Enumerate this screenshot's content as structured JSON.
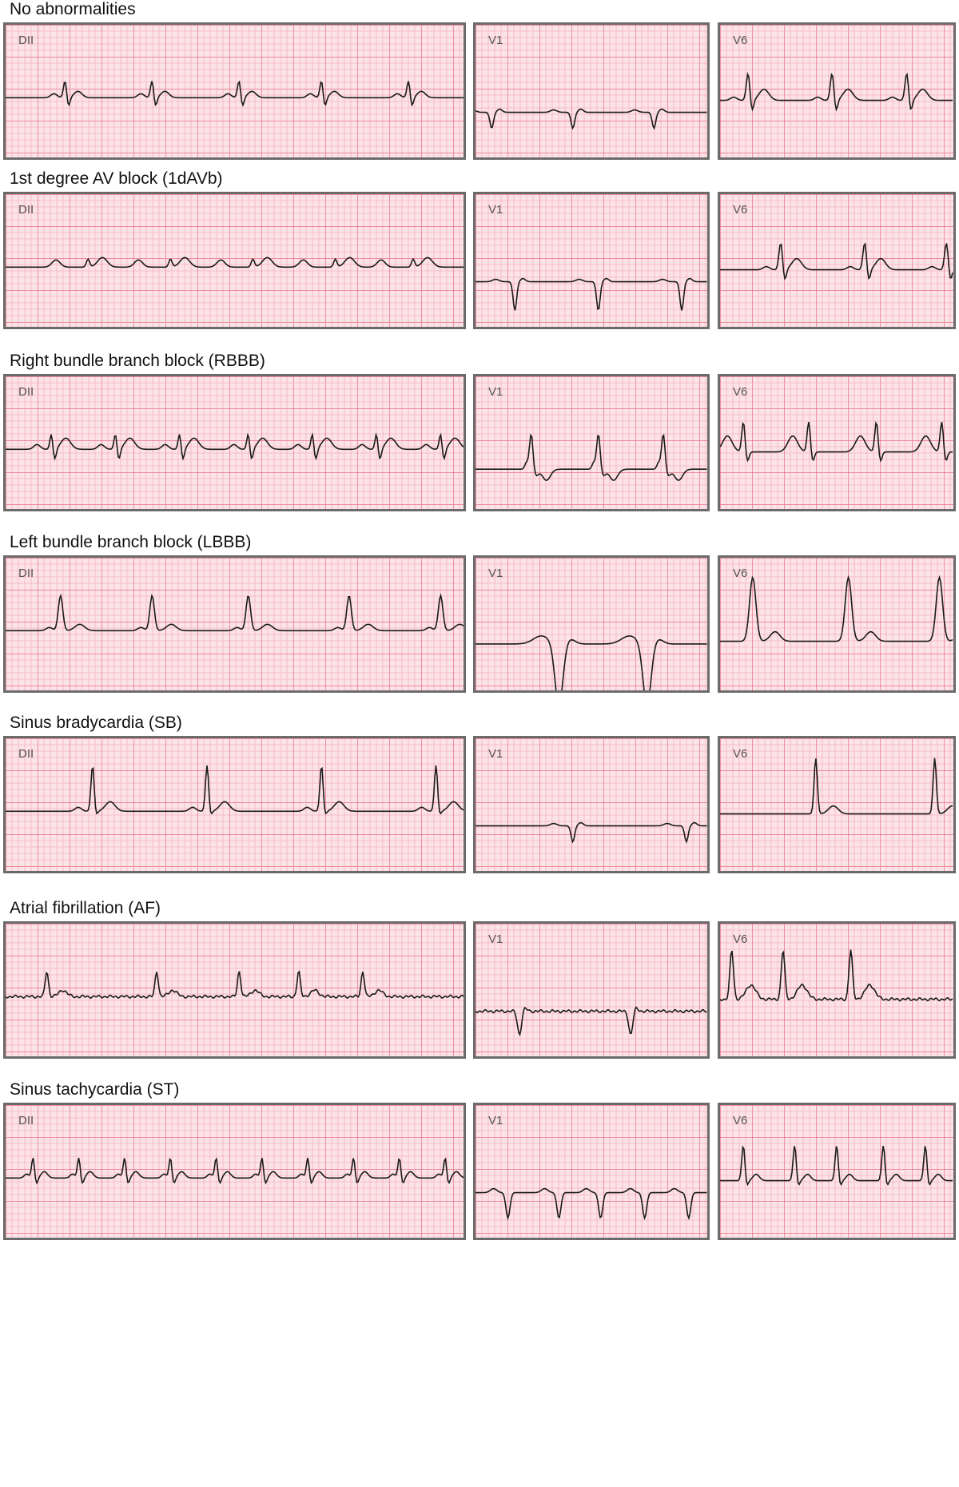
{
  "sections": [
    {
      "title": "No abnormalities",
      "leads": [
        "DII",
        "V1",
        "V6"
      ],
      "pattern": "normal"
    },
    {
      "title": "1st degree AV block (1dAVb)",
      "leads": [
        "DII",
        "V1",
        "V6"
      ],
      "pattern": "avb"
    },
    {
      "title": "Right bundle branch block (RBBB)",
      "leads": [
        "DII",
        "V1",
        "V6"
      ],
      "pattern": "rbbb"
    },
    {
      "title": "Left bundle branch block (LBBB)",
      "leads": [
        "DII",
        "V1",
        "V6"
      ],
      "pattern": "lbbb"
    },
    {
      "title": "Sinus bradycardia (SB)",
      "leads": [
        "DII",
        "V1",
        "V6"
      ],
      "pattern": "sb"
    },
    {
      "title": "Atrial fibrillation (AF)",
      "leads": [
        "",
        "V1",
        "V6"
      ],
      "pattern": "af"
    },
    {
      "title": "Sinus tachycardia (ST)",
      "leads": [
        "DII",
        "V1",
        "V6"
      ],
      "pattern": "st"
    }
  ],
  "colors": {
    "paper": "#fbe3e7",
    "minor_grid": "#f6b3bf",
    "major_grid": "#ea6f84",
    "trace": "#1a1a1a",
    "frame": "#6b6b6b"
  }
}
